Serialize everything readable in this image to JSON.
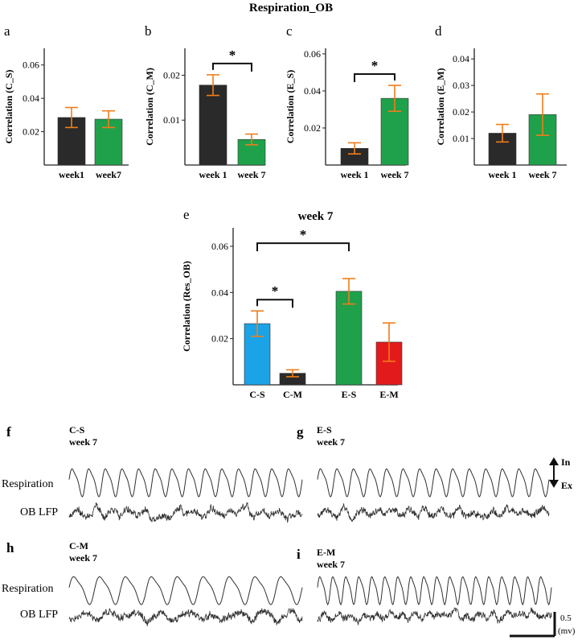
{
  "figure_title": "Respiration_OB",
  "colors": {
    "black_bar": "#2a2a2a",
    "green_bar": "#1fa14b",
    "blue_bar": "#1aa3e6",
    "red_bar": "#e31a1c",
    "error_bar": "#f07d1a",
    "axis": "#222222",
    "trace": "#303030"
  },
  "chart_data": [
    {
      "panel": "a",
      "type": "bar",
      "ylabel": "Correlation (C_S)",
      "categories": [
        "week1",
        "week7"
      ],
      "values": [
        0.0285,
        0.0275
      ],
      "errors": [
        0.006,
        0.005
      ],
      "ylim": [
        0,
        0.07
      ],
      "yticks": [
        0.02,
        0.04,
        0.06
      ],
      "bar_colors": [
        "black_bar",
        "green_bar"
      ],
      "significance": []
    },
    {
      "panel": "b",
      "type": "bar",
      "ylabel": "Correlation (C_M)",
      "categories": [
        "week 1",
        "week 7"
      ],
      "values": [
        0.0178,
        0.0057
      ],
      "errors": [
        0.0023,
        0.0012
      ],
      "ylim": [
        0,
        0.026
      ],
      "yticks": [
        0.01,
        0.02
      ],
      "bar_colors": [
        "black_bar",
        "green_bar"
      ],
      "significance": [
        {
          "from": 0,
          "to": 1,
          "label": "*"
        }
      ]
    },
    {
      "panel": "c",
      "type": "bar",
      "ylabel": "Correlation (E_S)",
      "categories": [
        "week 1",
        "week 7"
      ],
      "values": [
        0.009,
        0.036
      ],
      "errors": [
        0.003,
        0.007
      ],
      "ylim": [
        0,
        0.063
      ],
      "yticks": [
        0.02,
        0.04,
        0.06
      ],
      "bar_colors": [
        "black_bar",
        "green_bar"
      ],
      "significance": [
        {
          "from": 0,
          "to": 1,
          "label": "*"
        }
      ]
    },
    {
      "panel": "d",
      "type": "bar",
      "ylabel": "Correlation (E_M)",
      "categories": [
        "week 1",
        "week 7"
      ],
      "values": [
        0.012,
        0.019
      ],
      "errors": [
        0.0033,
        0.0078
      ],
      "ylim": [
        0,
        0.044
      ],
      "yticks": [
        0.01,
        0.02,
        0.03,
        0.04
      ],
      "bar_colors": [
        "black_bar",
        "green_bar"
      ],
      "significance": []
    },
    {
      "panel": "e",
      "type": "bar",
      "title": "week 7",
      "ylabel": "Correlation (Res_OB)",
      "categories": [
        "C-S",
        "C-M",
        "E-S",
        "E-M"
      ],
      "values": [
        0.0265,
        0.005,
        0.0405,
        0.0185
      ],
      "errors": [
        0.0055,
        0.0015,
        0.0055,
        0.0083
      ],
      "ylim": [
        0,
        0.068
      ],
      "yticks": [
        0.02,
        0.04,
        0.06
      ],
      "bar_colors": [
        "blue_bar",
        "black_bar",
        "green_bar",
        "red_bar"
      ],
      "significance": [
        {
          "from": 0,
          "to": 1,
          "label": "*"
        },
        {
          "from": 0,
          "to": 2,
          "label": "*"
        }
      ]
    }
  ],
  "trace_panels": [
    {
      "panel": "f",
      "group": "C-S",
      "week": "week 7",
      "cycles": 14,
      "seed": 3
    },
    {
      "panel": "g",
      "group": "E-S",
      "week": "week 7",
      "cycles": 14,
      "seed": 7
    },
    {
      "panel": "h",
      "group": "C-M",
      "week": "week 7",
      "cycles": 9,
      "seed": 11
    },
    {
      "panel": "i",
      "group": "E-M",
      "week": "week 7",
      "cycles": 18,
      "seed": 19
    }
  ],
  "trace_labels": {
    "respiration": "Respiration",
    "lfp": "OB LFP"
  },
  "direction_labels": {
    "inhale": "In",
    "exhale": "Ex"
  },
  "scale_bar": {
    "value": "0.5",
    "unit": "(mv)"
  }
}
